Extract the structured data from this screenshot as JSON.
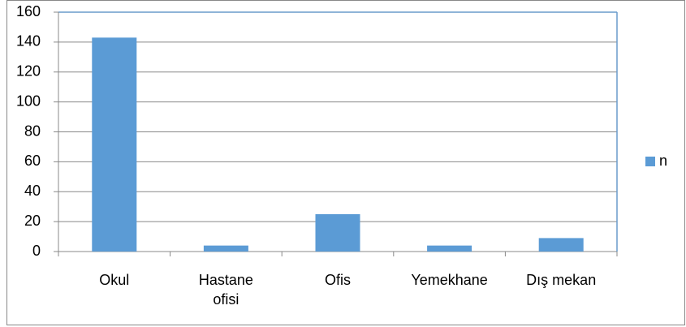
{
  "chart_data": {
    "type": "bar",
    "categories": [
      "Okul",
      "Hastane ofisi",
      "Ofis",
      "Yemekhane",
      "Dış mekan"
    ],
    "series": [
      {
        "name": "n",
        "color": "#5b9bd5",
        "values": [
          143,
          4,
          25,
          4,
          9
        ]
      }
    ],
    "ylim": [
      0,
      160
    ],
    "yticks": [
      0,
      20,
      40,
      60,
      80,
      100,
      120,
      140,
      160
    ],
    "grid": true,
    "legend": "right"
  }
}
